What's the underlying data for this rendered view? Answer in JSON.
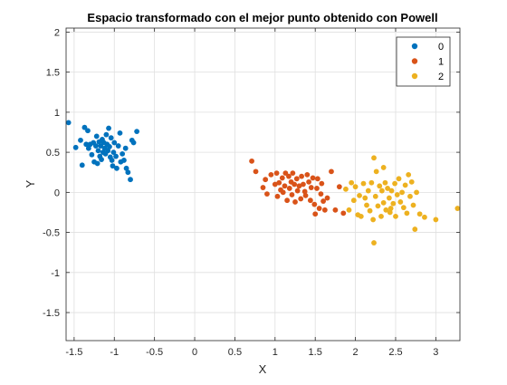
{
  "chart_data": {
    "type": "scatter",
    "title": "Espacio transformado con el mejor punto obtenido con Powell",
    "xlabel": "X",
    "ylabel": "Y",
    "xlim": [
      -1.6,
      3.3
    ],
    "ylim": [
      -1.85,
      2.05
    ],
    "xticks": [
      -1.5,
      -1,
      -0.5,
      0,
      0.5,
      1,
      1.5,
      2,
      2.5,
      3
    ],
    "xtick_labels": [
      "-1.5",
      "-1",
      "-0.5",
      "0",
      "0.5",
      "1",
      "1.5",
      "2",
      "2.5",
      "3"
    ],
    "yticks": [
      -1.5,
      -1,
      -0.5,
      0,
      0.5,
      1,
      1.5,
      2
    ],
    "ytick_labels": [
      "-1.5",
      "-1",
      "-0.5",
      "0",
      "0.5",
      "1",
      "1.5",
      "2"
    ],
    "grid": true,
    "legend_position": "top-right",
    "series": [
      {
        "name": "0",
        "color": "#0072BD",
        "points": [
          [
            -1.57,
            0.87
          ],
          [
            -1.48,
            0.56
          ],
          [
            -1.42,
            0.65
          ],
          [
            -1.4,
            0.34
          ],
          [
            -1.37,
            0.81
          ],
          [
            -1.33,
            0.77
          ],
          [
            -1.32,
            0.55
          ],
          [
            -1.3,
            0.6
          ],
          [
            -1.28,
            0.47
          ],
          [
            -1.26,
            0.62
          ],
          [
            -1.25,
            0.38
          ],
          [
            -1.23,
            0.58
          ],
          [
            -1.22,
            0.7
          ],
          [
            -1.2,
            0.52
          ],
          [
            -1.19,
            0.63
          ],
          [
            -1.18,
            0.45
          ],
          [
            -1.17,
            0.58
          ],
          [
            -1.16,
            0.41
          ],
          [
            -1.15,
            0.66
          ],
          [
            -1.14,
            0.5
          ],
          [
            -1.13,
            0.62
          ],
          [
            -1.12,
            0.55
          ],
          [
            -1.11,
            0.48
          ],
          [
            -1.1,
            0.72
          ],
          [
            -1.09,
            0.6
          ],
          [
            -1.08,
            0.52
          ],
          [
            -1.07,
            0.8
          ],
          [
            -1.06,
            0.57
          ],
          [
            -1.05,
            0.44
          ],
          [
            -1.04,
            0.68
          ],
          [
            -1.03,
            0.4
          ],
          [
            -1.02,
            0.33
          ],
          [
            -1.01,
            0.5
          ],
          [
            -1.0,
            0.62
          ],
          [
            -0.98,
            0.45
          ],
          [
            -0.97,
            0.3
          ],
          [
            -0.95,
            0.58
          ],
          [
            -0.93,
            0.74
          ],
          [
            -0.92,
            0.38
          ],
          [
            -0.9,
            0.48
          ],
          [
            -0.88,
            0.4
          ],
          [
            -0.86,
            0.55
          ],
          [
            -0.85,
            0.3
          ],
          [
            -0.83,
            0.25
          ],
          [
            -0.8,
            0.16
          ],
          [
            -0.78,
            0.65
          ],
          [
            -0.76,
            0.62
          ],
          [
            -0.72,
            0.76
          ],
          [
            -1.35,
            0.6
          ],
          [
            -1.21,
            0.36
          ]
        ]
      },
      {
        "name": "1",
        "color": "#D95319",
        "points": [
          [
            0.71,
            0.39
          ],
          [
            0.76,
            0.26
          ],
          [
            0.85,
            0.06
          ],
          [
            0.88,
            0.16
          ],
          [
            0.9,
            -0.02
          ],
          [
            0.95,
            0.22
          ],
          [
            1.0,
            0.1
          ],
          [
            1.02,
            0.24
          ],
          [
            1.03,
            -0.05
          ],
          [
            1.05,
            0.12
          ],
          [
            1.07,
            0.03
          ],
          [
            1.09,
            0.18
          ],
          [
            1.1,
            0.0
          ],
          [
            1.12,
            0.08
          ],
          [
            1.13,
            0.24
          ],
          [
            1.15,
            -0.1
          ],
          [
            1.17,
            0.2
          ],
          [
            1.18,
            0.05
          ],
          [
            1.2,
            0.13
          ],
          [
            1.21,
            -0.03
          ],
          [
            1.22,
            0.24
          ],
          [
            1.24,
            0.1
          ],
          [
            1.25,
            -0.12
          ],
          [
            1.27,
            0.17
          ],
          [
            1.28,
            0.02
          ],
          [
            1.3,
            0.08
          ],
          [
            1.32,
            -0.08
          ],
          [
            1.33,
            0.2
          ],
          [
            1.35,
            0.1
          ],
          [
            1.37,
            0.01
          ],
          [
            1.38,
            -0.04
          ],
          [
            1.4,
            0.22
          ],
          [
            1.42,
            0.13
          ],
          [
            1.44,
            -0.1
          ],
          [
            1.45,
            0.06
          ],
          [
            1.47,
            0.18
          ],
          [
            1.49,
            -0.15
          ],
          [
            1.5,
            -0.27
          ],
          [
            1.52,
            0.05
          ],
          [
            1.53,
            0.17
          ],
          [
            1.55,
            -0.2
          ],
          [
            1.57,
            -0.02
          ],
          [
            1.58,
            0.11
          ],
          [
            1.6,
            -0.11
          ],
          [
            1.62,
            -0.22
          ],
          [
            1.65,
            -0.07
          ],
          [
            1.7,
            0.26
          ],
          [
            1.75,
            -0.22
          ],
          [
            1.8,
            0.07
          ],
          [
            1.85,
            -0.26
          ]
        ]
      },
      {
        "name": "2",
        "color": "#EDB120",
        "points": [
          [
            1.88,
            0.04
          ],
          [
            1.92,
            -0.22
          ],
          [
            1.95,
            0.12
          ],
          [
            1.98,
            -0.1
          ],
          [
            2.0,
            0.07
          ],
          [
            2.03,
            -0.28
          ],
          [
            2.05,
            -0.04
          ],
          [
            2.07,
            -0.3
          ],
          [
            2.1,
            0.11
          ],
          [
            2.12,
            -0.07
          ],
          [
            2.14,
            -0.16
          ],
          [
            2.16,
            0.02
          ],
          [
            2.18,
            -0.23
          ],
          [
            2.2,
            0.12
          ],
          [
            2.22,
            -0.34
          ],
          [
            2.23,
            0.43
          ],
          [
            2.25,
            -0.05
          ],
          [
            2.26,
            0.26
          ],
          [
            2.28,
            -0.17
          ],
          [
            2.3,
            0.08
          ],
          [
            2.32,
            -0.3
          ],
          [
            2.33,
            0.02
          ],
          [
            2.35,
            -0.13
          ],
          [
            2.37,
            0.12
          ],
          [
            2.38,
            -0.22
          ],
          [
            2.4,
            0.05
          ],
          [
            2.42,
            -0.07
          ],
          [
            2.44,
            -0.2
          ],
          [
            2.45,
            0.02
          ],
          [
            2.47,
            -0.14
          ],
          [
            2.49,
            0.11
          ],
          [
            2.5,
            -0.3
          ],
          [
            2.52,
            -0.03
          ],
          [
            2.54,
            0.17
          ],
          [
            2.56,
            -0.12
          ],
          [
            2.58,
            0.0
          ],
          [
            2.6,
            -0.19
          ],
          [
            2.62,
            0.09
          ],
          [
            2.64,
            -0.26
          ],
          [
            2.66,
            0.22
          ],
          [
            2.68,
            -0.05
          ],
          [
            2.7,
            0.13
          ],
          [
            2.72,
            -0.16
          ],
          [
            2.74,
            -0.46
          ],
          [
            2.76,
            0.0
          ],
          [
            2.8,
            -0.27
          ],
          [
            2.86,
            -0.31
          ],
          [
            3.0,
            -0.34
          ],
          [
            3.27,
            -0.2
          ],
          [
            2.23,
            -0.63
          ],
          [
            2.35,
            0.31
          ],
          [
            2.43,
            -0.25
          ]
        ]
      }
    ]
  }
}
